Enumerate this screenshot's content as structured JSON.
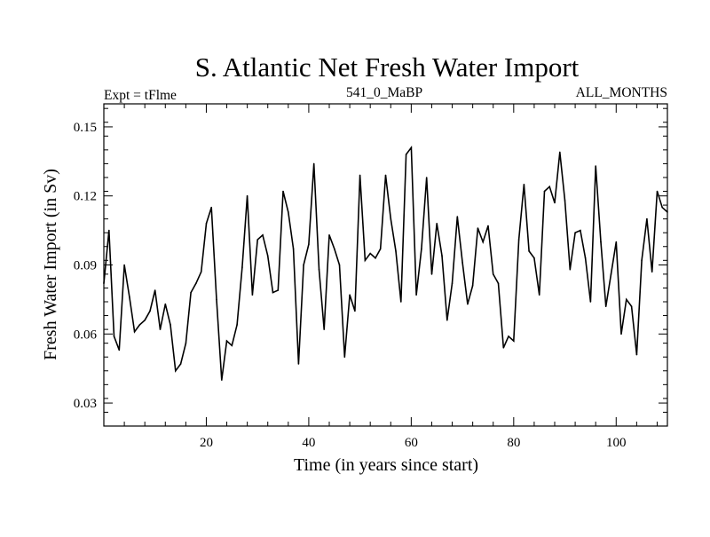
{
  "chart_data": {
    "type": "line",
    "title": "S. Atlantic Net Fresh Water Import",
    "subtitle_left": "Expt = tFlme",
    "subtitle_center": "541_0_MaBP",
    "subtitle_right": "ALL_MONTHS",
    "xlabel": "Time (in years since start)",
    "ylabel": "Fresh Water Import (in Sv)",
    "xlim": [
      0,
      110
    ],
    "ylim": [
      0.02,
      0.16
    ],
    "xticks": [
      20,
      40,
      60,
      80,
      100
    ],
    "xtick_labels": [
      "20",
      "40",
      "60",
      "80",
      "100"
    ],
    "yticks": [
      0.03,
      0.06,
      0.09,
      0.12,
      0.15
    ],
    "ytick_labels": [
      "0.03",
      "0.06",
      "0.09",
      "0.12",
      "0.15"
    ],
    "x_minor_step": 4,
    "y_minor_step": 0.006,
    "grid": false,
    "line_color": "#000000",
    "series": [
      {
        "name": "Fresh Water Import",
        "x": [
          0,
          1,
          2,
          3,
          4,
          5,
          6,
          7,
          8,
          9,
          10,
          11,
          12,
          13,
          14,
          15,
          16,
          17,
          18,
          19,
          20,
          21,
          22,
          23,
          24,
          25,
          26,
          27,
          28,
          29,
          30,
          31,
          32,
          33,
          34,
          35,
          36,
          37,
          38,
          39,
          40,
          41,
          42,
          43,
          44,
          45,
          46,
          47,
          48,
          49,
          50,
          51,
          52,
          53,
          54,
          55,
          56,
          57,
          58,
          59,
          60,
          61,
          62,
          63,
          64,
          65,
          66,
          67,
          68,
          69,
          70,
          71,
          72,
          73,
          74,
          75,
          76,
          77,
          78,
          79,
          80,
          81,
          82,
          83,
          84,
          85,
          86,
          87,
          88,
          89,
          90,
          91,
          92,
          93,
          94,
          95,
          96,
          97,
          98,
          99,
          100,
          101,
          102,
          103,
          104,
          105,
          106,
          107,
          108,
          109,
          110
        ],
        "y": [
          0.082,
          0.105,
          0.059,
          0.053,
          0.09,
          0.076,
          0.061,
          0.064,
          0.066,
          0.07,
          0.079,
          0.062,
          0.073,
          0.064,
          0.044,
          0.047,
          0.056,
          0.078,
          0.082,
          0.087,
          0.108,
          0.115,
          0.075,
          0.04,
          0.057,
          0.055,
          0.064,
          0.089,
          0.12,
          0.077,
          0.101,
          0.103,
          0.094,
          0.078,
          0.079,
          0.122,
          0.113,
          0.097,
          0.047,
          0.09,
          0.099,
          0.134,
          0.088,
          0.062,
          0.103,
          0.097,
          0.09,
          0.05,
          0.077,
          0.07,
          0.129,
          0.092,
          0.095,
          0.093,
          0.097,
          0.129,
          0.11,
          0.096,
          0.074,
          0.138,
          0.141,
          0.077,
          0.097,
          0.128,
          0.086,
          0.108,
          0.094,
          0.066,
          0.082,
          0.111,
          0.091,
          0.073,
          0.081,
          0.106,
          0.1,
          0.107,
          0.086,
          0.082,
          0.054,
          0.059,
          0.057,
          0.101,
          0.125,
          0.096,
          0.093,
          0.077,
          0.122,
          0.124,
          0.117,
          0.139,
          0.118,
          0.088,
          0.104,
          0.105,
          0.093,
          0.074,
          0.133,
          0.1,
          0.072,
          0.086,
          0.1,
          0.06,
          0.075,
          0.072,
          0.051,
          0.092,
          0.11,
          0.087,
          0.122,
          0.115,
          0.113
        ]
      }
    ]
  }
}
